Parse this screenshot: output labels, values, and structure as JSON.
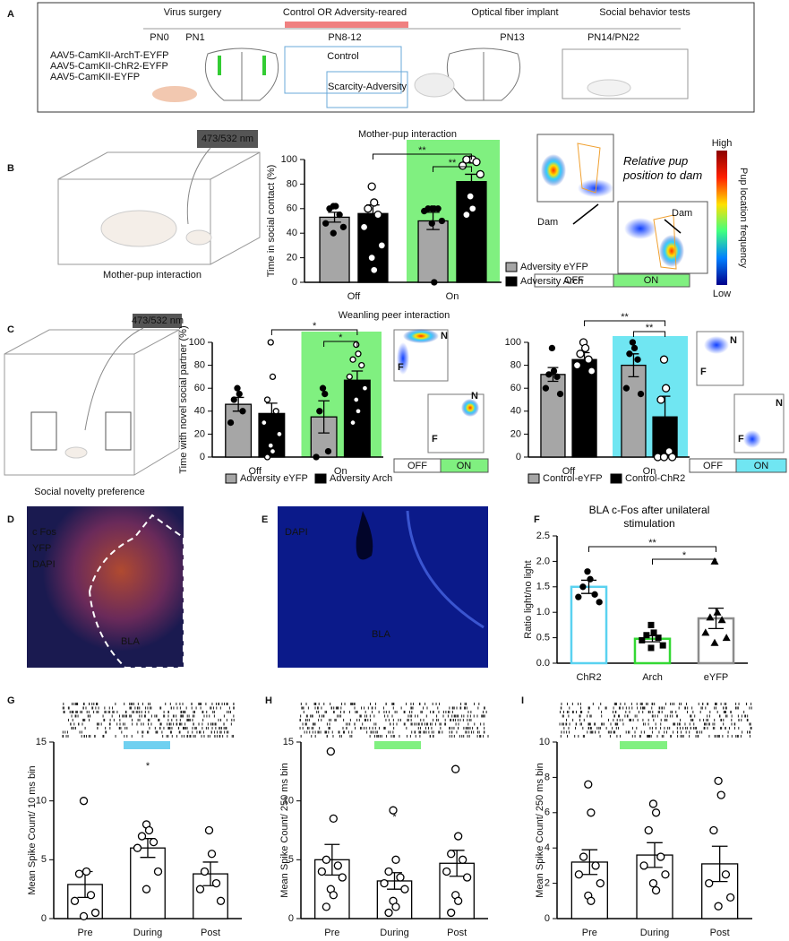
{
  "panel_letters": [
    "A",
    "B",
    "C",
    "D",
    "E",
    "F",
    "G",
    "H",
    "I"
  ],
  "timeline": {
    "stages": [
      "Virus surgery",
      "Control OR Adversity-reared",
      "Optical fiber implant",
      "Social behavior tests"
    ],
    "timepoints": [
      "PN0",
      "PN1",
      "PN8-12",
      "PN13",
      "PN14/PN22"
    ],
    "viruses": [
      "AAV5-CamKII-ArchT-EYFP",
      "AAV5-CamKII-ChR2-EYFP",
      "AAV5-CamKII-EYFP"
    ],
    "cages": [
      "Control",
      "Scarcity-Adversity"
    ]
  },
  "mother_pup": {
    "caption": "Mother-pup interaction",
    "laser": "473/532 nm",
    "heatmap_note": "Relative pup position to dam",
    "dam_labels": [
      "Dam",
      "Dam"
    ],
    "colorbar": {
      "title": "Pup location frequency",
      "high": "High",
      "low": "Low"
    },
    "conditions": [
      "OFF",
      "ON"
    ]
  },
  "social_novelty": {
    "caption": "Social novelty preference",
    "laser": "473/532 nm",
    "zone_labels": [
      "N",
      "F"
    ],
    "conditions": [
      "OFF",
      "ON"
    ]
  },
  "histology": {
    "d_labels": [
      "c Fos",
      "YFP",
      "DAPI",
      "BLA"
    ],
    "e_labels": [
      "DAPI",
      "BLA"
    ]
  },
  "chart_data": [
    {
      "type": "bar",
      "title": "Mother-pup interaction",
      "y_label": "Time in social contact (%)",
      "categories": [
        "Off",
        "On"
      ],
      "series": [
        {
          "name": "Adversity eYFP",
          "color": "#a6a6a6",
          "values": [
            53,
            50
          ],
          "errors": [
            4,
            7
          ],
          "points": [
            [
              62,
              62,
              60,
              55,
              48,
              45,
              40
            ],
            [
              60,
              60,
              60,
              60,
              58,
              50,
              48,
              0
            ]
          ]
        },
        {
          "name": "Adversity Arch",
          "color": "#000000",
          "values": [
            56,
            82
          ],
          "errors": [
            7,
            6
          ],
          "points": [
            [
              78,
              65,
              60,
              55,
              45,
              30,
              20,
              10
            ],
            [
              100,
              100,
              100,
              98,
              95,
              88,
              70,
              60,
              55
            ]
          ]
        }
      ],
      "ylim": [
        0,
        100
      ],
      "yticks": [
        0,
        20,
        40,
        60,
        80,
        100
      ],
      "highlight_color": "#80f080",
      "annotations": [
        "**",
        "**"
      ]
    },
    {
      "type": "bar",
      "title": "Weanling peer interaction",
      "y_label": "Time with novel social partner (%)",
      "categories": [
        "Off",
        "On"
      ],
      "series": [
        {
          "name": "Adversity eYFP",
          "color": "#a6a6a6",
          "values": [
            46,
            35
          ],
          "errors": [
            6,
            14
          ],
          "points": [
            [
              60,
              55,
              50,
              40,
              30
            ],
            [
              60,
              55,
              40,
              5,
              0
            ]
          ]
        },
        {
          "name": "Adversity Arch",
          "color": "#000000",
          "values": [
            38,
            67
          ],
          "errors": [
            9,
            8
          ],
          "points": [
            [
              100,
              70,
              50,
              40,
              30,
              20,
              10,
              5,
              0
            ],
            [
              98,
              90,
              85,
              80,
              70,
              60,
              50,
              40,
              30
            ]
          ]
        }
      ],
      "ylim": [
        0,
        100
      ],
      "yticks": [
        0,
        20,
        40,
        60,
        80,
        100
      ],
      "highlight_color": "#80f080",
      "annotations": [
        "*",
        "*"
      ]
    },
    {
      "type": "bar",
      "categories": [
        "Off",
        "On"
      ],
      "series": [
        {
          "name": "Control-eYFP",
          "color": "#a6a6a6",
          "values": [
            72,
            80
          ],
          "errors": [
            6,
            10
          ],
          "points": [
            [
              95,
              75,
              72,
              70,
              60,
              55
            ],
            [
              100,
              95,
              90,
              85,
              60,
              55
            ]
          ]
        },
        {
          "name": "Control-ChR2",
          "color": "#000000",
          "values": [
            85,
            35
          ],
          "errors": [
            6,
            18
          ],
          "points": [
            [
              100,
              95,
              90,
              85,
              80,
              75
            ],
            [
              85,
              60,
              50,
              5,
              0,
              0,
              0
            ]
          ]
        }
      ],
      "ylim": [
        0,
        100
      ],
      "yticks": [
        0,
        20,
        40,
        60,
        80,
        100
      ],
      "highlight_color": "#70e6f2",
      "annotations": [
        "**",
        "**"
      ]
    },
    {
      "type": "bar",
      "title": "BLA c-Fos after unilateral stimulation",
      "y_label": "Ratio light/no light",
      "categories": [
        "ChR2",
        "Arch",
        "eYFP"
      ],
      "values": [
        1.5,
        0.48,
        0.88
      ],
      "errors": [
        0.13,
        0.06,
        0.2
      ],
      "colors": [
        "#5ad2f0",
        "#34d834",
        "#8c8c8c"
      ],
      "points": [
        [
          1.8,
          1.65,
          1.5,
          1.35,
          1.3,
          1.2
        ],
        [
          0.75,
          0.6,
          0.55,
          0.5,
          0.45,
          0.35,
          0.3
        ],
        [
          2.0,
          1.0,
          0.9,
          0.85,
          0.6,
          0.5,
          0.4
        ]
      ],
      "ylim": [
        0,
        2.5
      ],
      "yticks": [
        {
          "value": 0,
          "label": "0.0"
        },
        {
          "value": 0.5,
          "label": "0.5"
        },
        {
          "value": 1,
          "label": "1.0"
        },
        {
          "value": 1.5,
          "label": "1.5"
        },
        {
          "value": 2,
          "label": "2.0"
        },
        {
          "value": 2.5,
          "label": "2.5"
        }
      ],
      "annotations": [
        "**",
        "*"
      ]
    },
    {
      "type": "bar",
      "y_label": "Mean Spike Count/ 10 ms bin",
      "categories": [
        "Pre",
        "During",
        "Post"
      ],
      "values": [
        2.9,
        6.0,
        3.8
      ],
      "errors": [
        1.1,
        0.8,
        1.0
      ],
      "points": [
        [
          10,
          4,
          3.8,
          2,
          1.5,
          0.5,
          0.2
        ],
        [
          8,
          7.5,
          7,
          6.5,
          6,
          4,
          2.5
        ],
        [
          7.5,
          5.5,
          4,
          3,
          2.5,
          1.5
        ]
      ],
      "ylim": [
        0,
        15
      ],
      "yticks": [
        0,
        5,
        10,
        15
      ],
      "stim_color": "#6fd0f0",
      "annotations": [
        "*"
      ]
    },
    {
      "type": "bar",
      "y_label": "Mean Spike Count/ 250 ms bin",
      "categories": [
        "Pre",
        "During",
        "Post"
      ],
      "values": [
        5.0,
        3.2,
        4.7
      ],
      "errors": [
        1.3,
        0.7,
        1.1
      ],
      "points": [
        [
          14.2,
          8.5,
          5,
          4.5,
          4,
          3.5,
          2.5,
          2,
          1
        ],
        [
          9.2,
          5,
          4,
          3.5,
          3,
          2.5,
          1.5,
          1,
          0.5
        ],
        [
          12.7,
          7,
          5.5,
          5,
          4,
          3.5,
          2,
          1.5,
          0.5
        ]
      ],
      "ylim": [
        0,
        15
      ],
      "yticks": [
        0,
        5,
        10,
        15
      ],
      "stim_color": "#80f080",
      "annotations": [
        "*"
      ]
    },
    {
      "type": "bar",
      "y_label": "Mean Spike Count/ 250 ms bin",
      "categories": [
        "Pre",
        "During",
        "Post"
      ],
      "values": [
        3.2,
        3.6,
        3.1
      ],
      "errors": [
        0.7,
        0.7,
        1.0
      ],
      "points": [
        [
          7.6,
          6,
          3.5,
          3,
          2.5,
          2,
          1.3,
          1
        ],
        [
          6.5,
          6,
          5,
          3.5,
          3,
          2.5,
          2,
          1.6
        ],
        [
          7.8,
          7,
          5,
          2.5,
          2,
          1.2,
          0.7
        ]
      ],
      "ylim": [
        0,
        10
      ],
      "yticks": [
        0,
        2,
        4,
        6,
        8,
        10
      ],
      "stim_color": "#80f080"
    }
  ]
}
